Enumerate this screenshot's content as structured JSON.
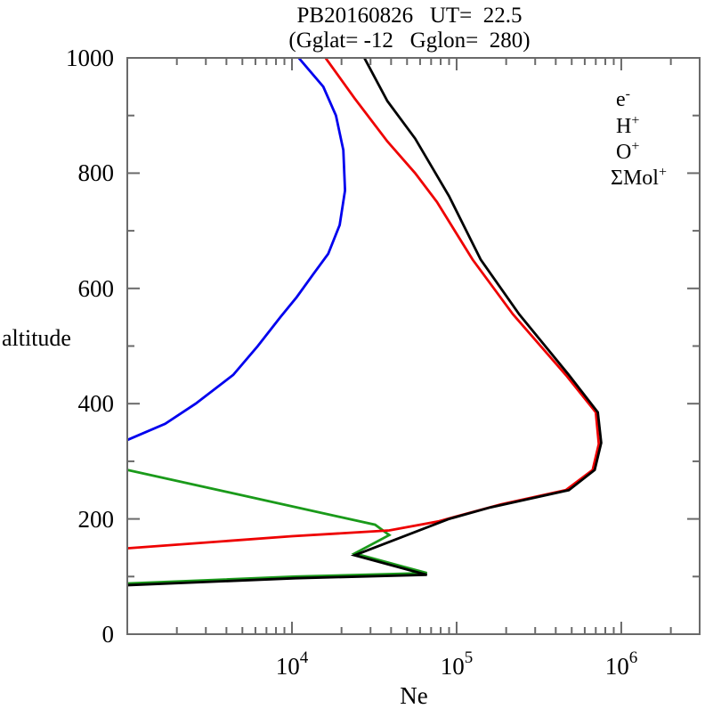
{
  "chart_data": {
    "type": "line",
    "title": "PB20160826   UT=  22.5",
    "subtitle": "(Gglat= -12   Gglon=  280)",
    "xlabel": "Ne",
    "ylabel": "altitude",
    "x_axis": {
      "scale": "log",
      "min_log": 3,
      "max_log": 6.476,
      "major_ticks": [
        {
          "log": 4,
          "base": "10",
          "exp": "4"
        },
        {
          "log": 5,
          "base": "10",
          "exp": "5"
        },
        {
          "log": 6,
          "base": "10",
          "exp": "6"
        }
      ],
      "minor_tick_multiples": [
        2,
        3,
        4,
        5,
        6,
        7,
        8,
        9
      ]
    },
    "y_axis": {
      "min": 0,
      "max": 1000,
      "major_step": 200,
      "minor_step": 100,
      "tick_labels": [
        "0",
        "200",
        "400",
        "600",
        "800",
        "1000"
      ]
    },
    "grid": false,
    "legend_position": "top-right-inside",
    "legend": [
      {
        "base": "e",
        "sup": "-",
        "color": "#000000"
      },
      {
        "base": "H",
        "sup": "+",
        "color": "#0000ee"
      },
      {
        "base": "O",
        "sup": "+",
        "color": "#ee0000"
      },
      {
        "base": "ΣMol",
        "sup": "+",
        "color": "#1a9a1a"
      }
    ],
    "series": [
      {
        "name": "e-",
        "id": "electron",
        "color": "#000000",
        "points_ne_vs_altitude_km": [
          [
            1000,
            85
          ],
          [
            10500,
            97
          ],
          [
            66000,
            103
          ],
          [
            24000,
            137
          ],
          [
            90000,
            200
          ],
          [
            160000,
            220
          ],
          [
            480000,
            250
          ],
          [
            690000,
            285
          ],
          [
            755000,
            332
          ],
          [
            720000,
            385
          ],
          [
            480000,
            450
          ],
          [
            240000,
            555
          ],
          [
            140000,
            650
          ],
          [
            90000,
            760
          ],
          [
            56000,
            860
          ],
          [
            38000,
            925
          ],
          [
            27500,
            1000
          ]
        ]
      },
      {
        "name": "H+",
        "id": "hydrogen-ion",
        "color": "#0000ee",
        "points_ne_vs_altitude_km": [
          [
            1000,
            337
          ],
          [
            1700,
            365
          ],
          [
            2600,
            400
          ],
          [
            4400,
            450
          ],
          [
            6200,
            500
          ],
          [
            8500,
            550
          ],
          [
            10700,
            585
          ],
          [
            13500,
            625
          ],
          [
            16600,
            660
          ],
          [
            19500,
            710
          ],
          [
            21000,
            770
          ],
          [
            20500,
            840
          ],
          [
            18500,
            900
          ],
          [
            15500,
            950
          ],
          [
            11000,
            1000
          ]
        ]
      },
      {
        "name": "O+",
        "id": "oxygen-ion",
        "color": "#ee0000",
        "points_ne_vs_altitude_km": [
          [
            1000,
            149
          ],
          [
            10000,
            170
          ],
          [
            39000,
            180
          ],
          [
            78000,
            196
          ],
          [
            185000,
            225
          ],
          [
            460000,
            250
          ],
          [
            670000,
            285
          ],
          [
            730000,
            330
          ],
          [
            700000,
            385
          ],
          [
            460000,
            450
          ],
          [
            220000,
            555
          ],
          [
            125000,
            650
          ],
          [
            76000,
            750
          ],
          [
            56000,
            800
          ],
          [
            38000,
            855
          ],
          [
            24000,
            930
          ],
          [
            16000,
            1000
          ]
        ]
      },
      {
        "name": "SigmaMol+",
        "id": "molecular-ions",
        "color": "#1a9a1a",
        "points_ne_vs_altitude_km": [
          [
            1000,
            285
          ],
          [
            32000,
            190
          ],
          [
            39000,
            172
          ],
          [
            24000,
            140
          ],
          [
            66000,
            106
          ],
          [
            10500,
            100
          ],
          [
            1000,
            88
          ]
        ]
      }
    ]
  }
}
